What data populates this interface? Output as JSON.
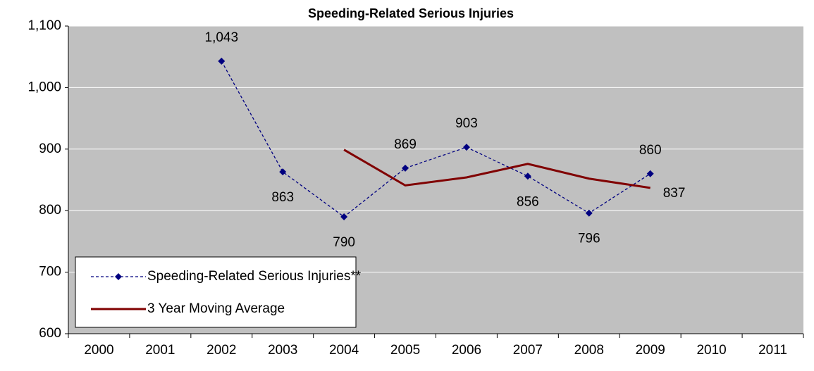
{
  "chart_data": {
    "type": "line",
    "title": "Speeding-Related Serious Injuries",
    "categories": [
      "2000",
      "2001",
      "2002",
      "2003",
      "2004",
      "2005",
      "2006",
      "2007",
      "2008",
      "2009",
      "2010",
      "2011"
    ],
    "series": [
      {
        "name": "Speeding-Related Serious Injuries**",
        "color": "#000080",
        "dashed": true,
        "marker": "diamond",
        "values": [
          null,
          null,
          1043,
          863,
          790,
          869,
          903,
          856,
          796,
          860,
          null,
          null
        ],
        "value_labels": [
          null,
          null,
          "1,043",
          "863",
          "790",
          "869",
          "903",
          "856",
          "796",
          "860",
          null,
          null
        ]
      },
      {
        "name": "3 Year Moving Average",
        "color": "#800000",
        "dashed": false,
        "marker": "none",
        "values": [
          null,
          null,
          null,
          null,
          899,
          841,
          854,
          876,
          852,
          837,
          null,
          null
        ],
        "value_labels": [
          null,
          null,
          null,
          null,
          null,
          null,
          null,
          null,
          null,
          "837",
          null,
          null
        ]
      }
    ],
    "ylim": [
      600,
      1100
    ],
    "yticks": [
      600,
      700,
      800,
      900,
      {
        "value": 1000,
        "label": "1,000"
      },
      {
        "value": 1100,
        "label": "1,100"
      }
    ],
    "grid": true,
    "legend": "lower left"
  }
}
